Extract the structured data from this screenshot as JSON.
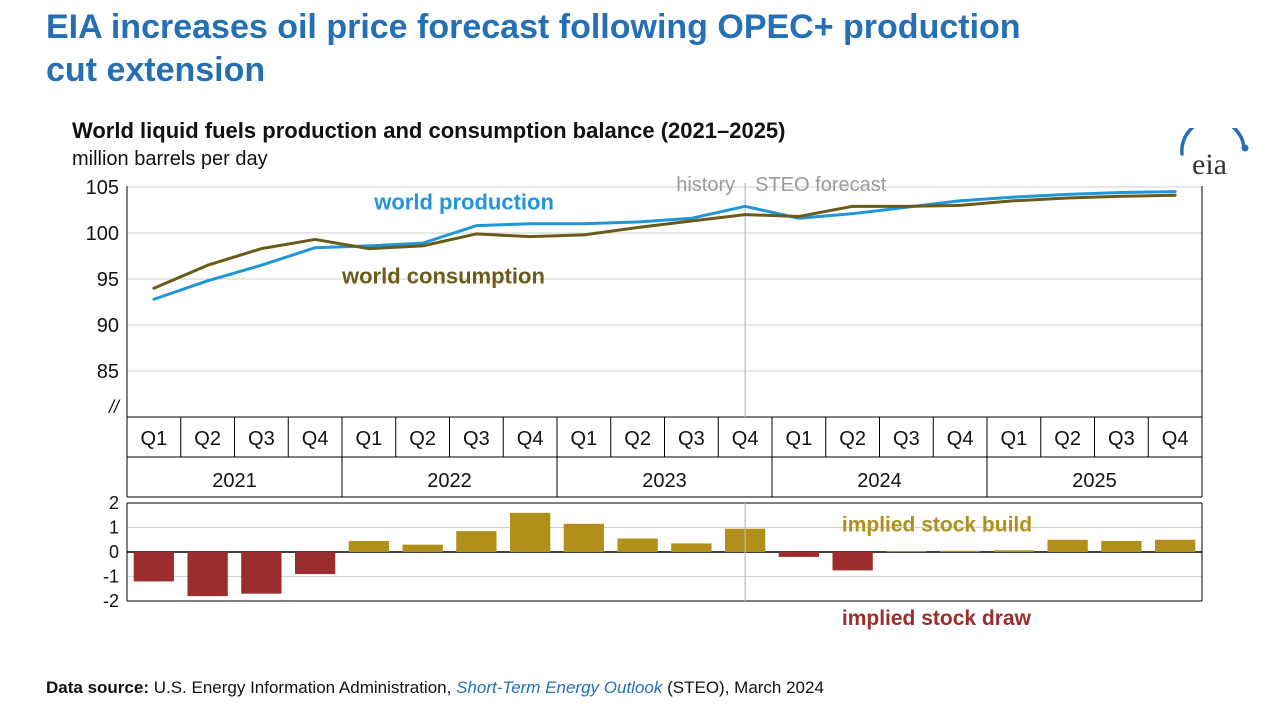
{
  "headline": "EIA increases oil price forecast following OPEC+ production cut extension",
  "chart": {
    "title": "World liquid fuels production and consumption balance (2021–2025)",
    "subtitle": "million barrels per day",
    "type": "line_and_bar_combo",
    "background_color": "#ffffff",
    "plot_border_color": "#000000",
    "grid_color": "#cfcfcf",
    "years": [
      "2021",
      "2022",
      "2023",
      "2024",
      "2025"
    ],
    "quarters": [
      "Q1",
      "Q2",
      "Q3",
      "Q4"
    ],
    "axis_font_size": 20,
    "history_forecast_divider_after_period": 11,
    "labels": {
      "history": "history",
      "forecast": "STEO forecast",
      "series_production": "world production",
      "series_consumption": "world consumption",
      "implied_build": "implied stock  build",
      "implied_draw": "implied stock draw",
      "axis_break": "//"
    },
    "label_colors": {
      "production": "#2196d6",
      "consumption": "#6b5a1a",
      "history": "#9a9a9a",
      "forecast": "#9a9a9a",
      "build": "#b08f1a",
      "draw": "#9b2d2d"
    },
    "line_chart": {
      "ylim": [
        80,
        105
      ],
      "ytick_step": 5,
      "yticks_shown": [
        85,
        90,
        95,
        100,
        105
      ],
      "line_width": 3,
      "series": [
        {
          "name": "world_production",
          "color": "#2196d6",
          "values": [
            92.8,
            94.8,
            96.5,
            98.4,
            98.6,
            98.9,
            100.8,
            101.0,
            101.0,
            101.2,
            101.6,
            102.9,
            101.6,
            102.1,
            102.8,
            103.5,
            103.9,
            104.2,
            104.4,
            104.5
          ]
        },
        {
          "name": "world_consumption",
          "color": "#6b5a1a",
          "values": [
            94.0,
            96.5,
            98.3,
            99.3,
            98.3,
            98.6,
            99.9,
            99.6,
            99.8,
            100.6,
            101.3,
            102.0,
            101.8,
            102.9,
            102.9,
            103.0,
            103.5,
            103.8,
            104.0,
            104.1
          ]
        }
      ]
    },
    "bar_chart": {
      "ylim": [
        -2,
        2
      ],
      "ytick_step": 1,
      "bar_width": 0.75,
      "colors": {
        "build": "#b08f1a",
        "draw": "#9b2d2d"
      },
      "values": [
        -1.2,
        -1.8,
        -1.7,
        -0.9,
        0.45,
        0.3,
        0.85,
        1.6,
        1.15,
        0.55,
        0.35,
        0.95,
        -0.2,
        -0.75,
        0.04,
        0.05,
        0.07,
        0.5,
        0.45,
        0.5
      ]
    }
  },
  "logo_text": "eia",
  "source": {
    "label": "Data source:",
    "text_pre": " U.S. Energy Information Administration, ",
    "link": "Short-Term Energy Outlook",
    "text_post": " (STEO), March 2024"
  }
}
